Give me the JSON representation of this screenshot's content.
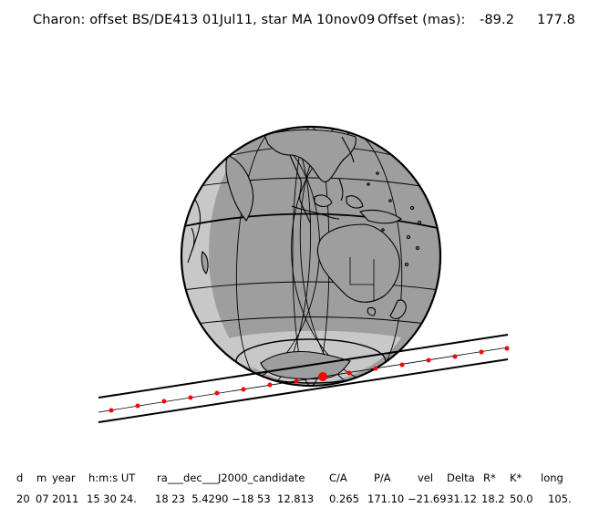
{
  "title": {
    "text": "Charon: offset BS/DE413 01Jul11, star MA 10nov09",
    "offset_label": "Offset (mas):",
    "offset_x": "-89.2",
    "offset_y": "177.8"
  },
  "table": {
    "headers": [
      "d",
      "m",
      "year",
      "h:m:s UT",
      "ra___dec___J2000_candidate",
      "C/A",
      "P/A",
      "vel",
      "Delta",
      "R*",
      "K*",
      "long"
    ],
    "values": [
      "20",
      "07",
      "2011",
      "15 30 24.",
      "18 23  5.4290 −18 53  12.813",
      "0.265",
      "171.10",
      "−21.69",
      "31.12",
      "18.2",
      "50.0",
      "105."
    ]
  },
  "colors": {
    "ocean": "#9e9e9e",
    "night_side": "#c8c8c8",
    "track_dots": "#ff0000",
    "outline": "#000000"
  }
}
